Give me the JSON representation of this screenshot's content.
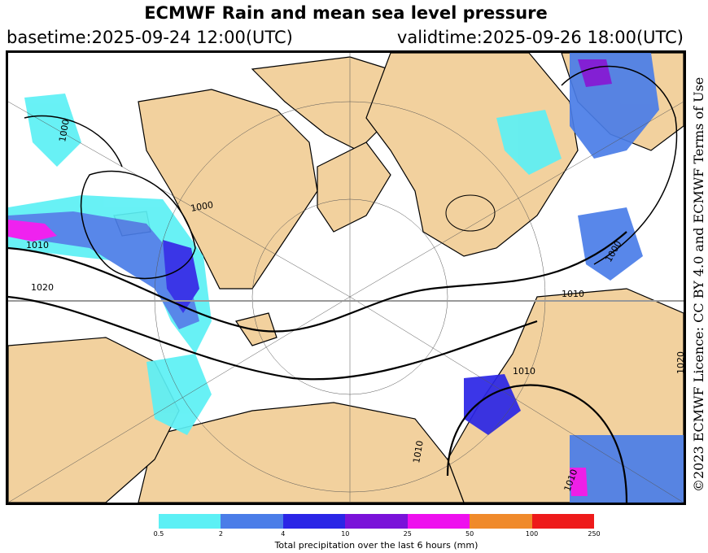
{
  "header": {
    "title": "ECMWF Rain and mean sea level pressure",
    "basetime": "basetime:2025-09-24 12:00(UTC)",
    "validtime": "validtime:2025-09-26 18:00(UTC)"
  },
  "credit": "©2023 ECMWF Licence: CC BY 4.0 and ECMWF Terms of Use",
  "isobars": {
    "labels": [
      "1010",
      "1000",
      "1010",
      "1020",
      "1000",
      "1010",
      "1010",
      "1010",
      "1000",
      "1020"
    ]
  },
  "colorbar": {
    "ticks": [
      "0.5",
      "2",
      "4",
      "10",
      "25",
      "50",
      "100",
      "250"
    ],
    "colors": [
      "#5cf0f5",
      "#4a7de8",
      "#2a25e6",
      "#7a12d9",
      "#ee10ee",
      "#f08a2a",
      "#ee1a1a"
    ],
    "label": "Total precipitation over the last 6 hours (mm)"
  },
  "map_colors": {
    "land": "#f2d19e",
    "ocean": "#ffffff",
    "light_rain": "#5cf0f5",
    "moderate_rain": "#4a7de8",
    "heavy_rain": "#2a25e6",
    "very_heavy_rain": "#7a12d9",
    "extreme_rain": "#ee10ee"
  }
}
